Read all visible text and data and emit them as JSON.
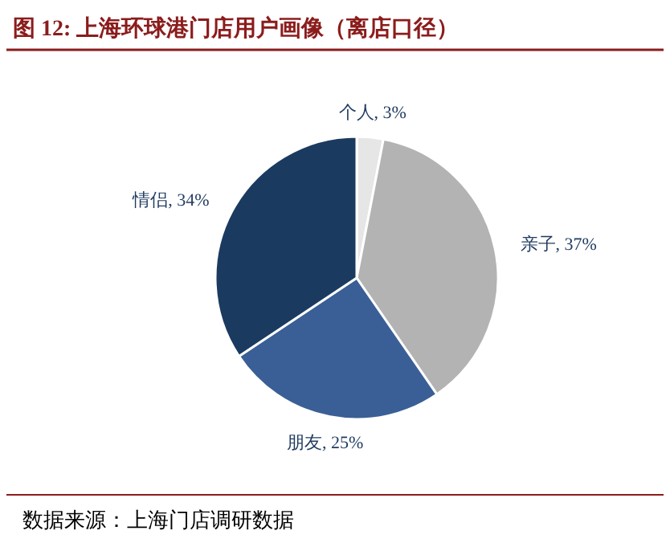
{
  "chart_data": {
    "type": "pie",
    "title": "图 12:  上海环球港门店用户画像（离店口径）",
    "categories": [
      "个人",
      "亲子",
      "朋友",
      "情侣"
    ],
    "values": [
      3,
      37,
      25,
      34
    ],
    "colors": [
      "#e6e6e6",
      "#b3b3b3",
      "#3a5f96",
      "#1b3a60"
    ],
    "value_labels": [
      ", 3%",
      ", 37%",
      ", 25%",
      ", 34%"
    ],
    "annotations": [
      "数据来源：上海门店调研数据"
    ]
  }
}
